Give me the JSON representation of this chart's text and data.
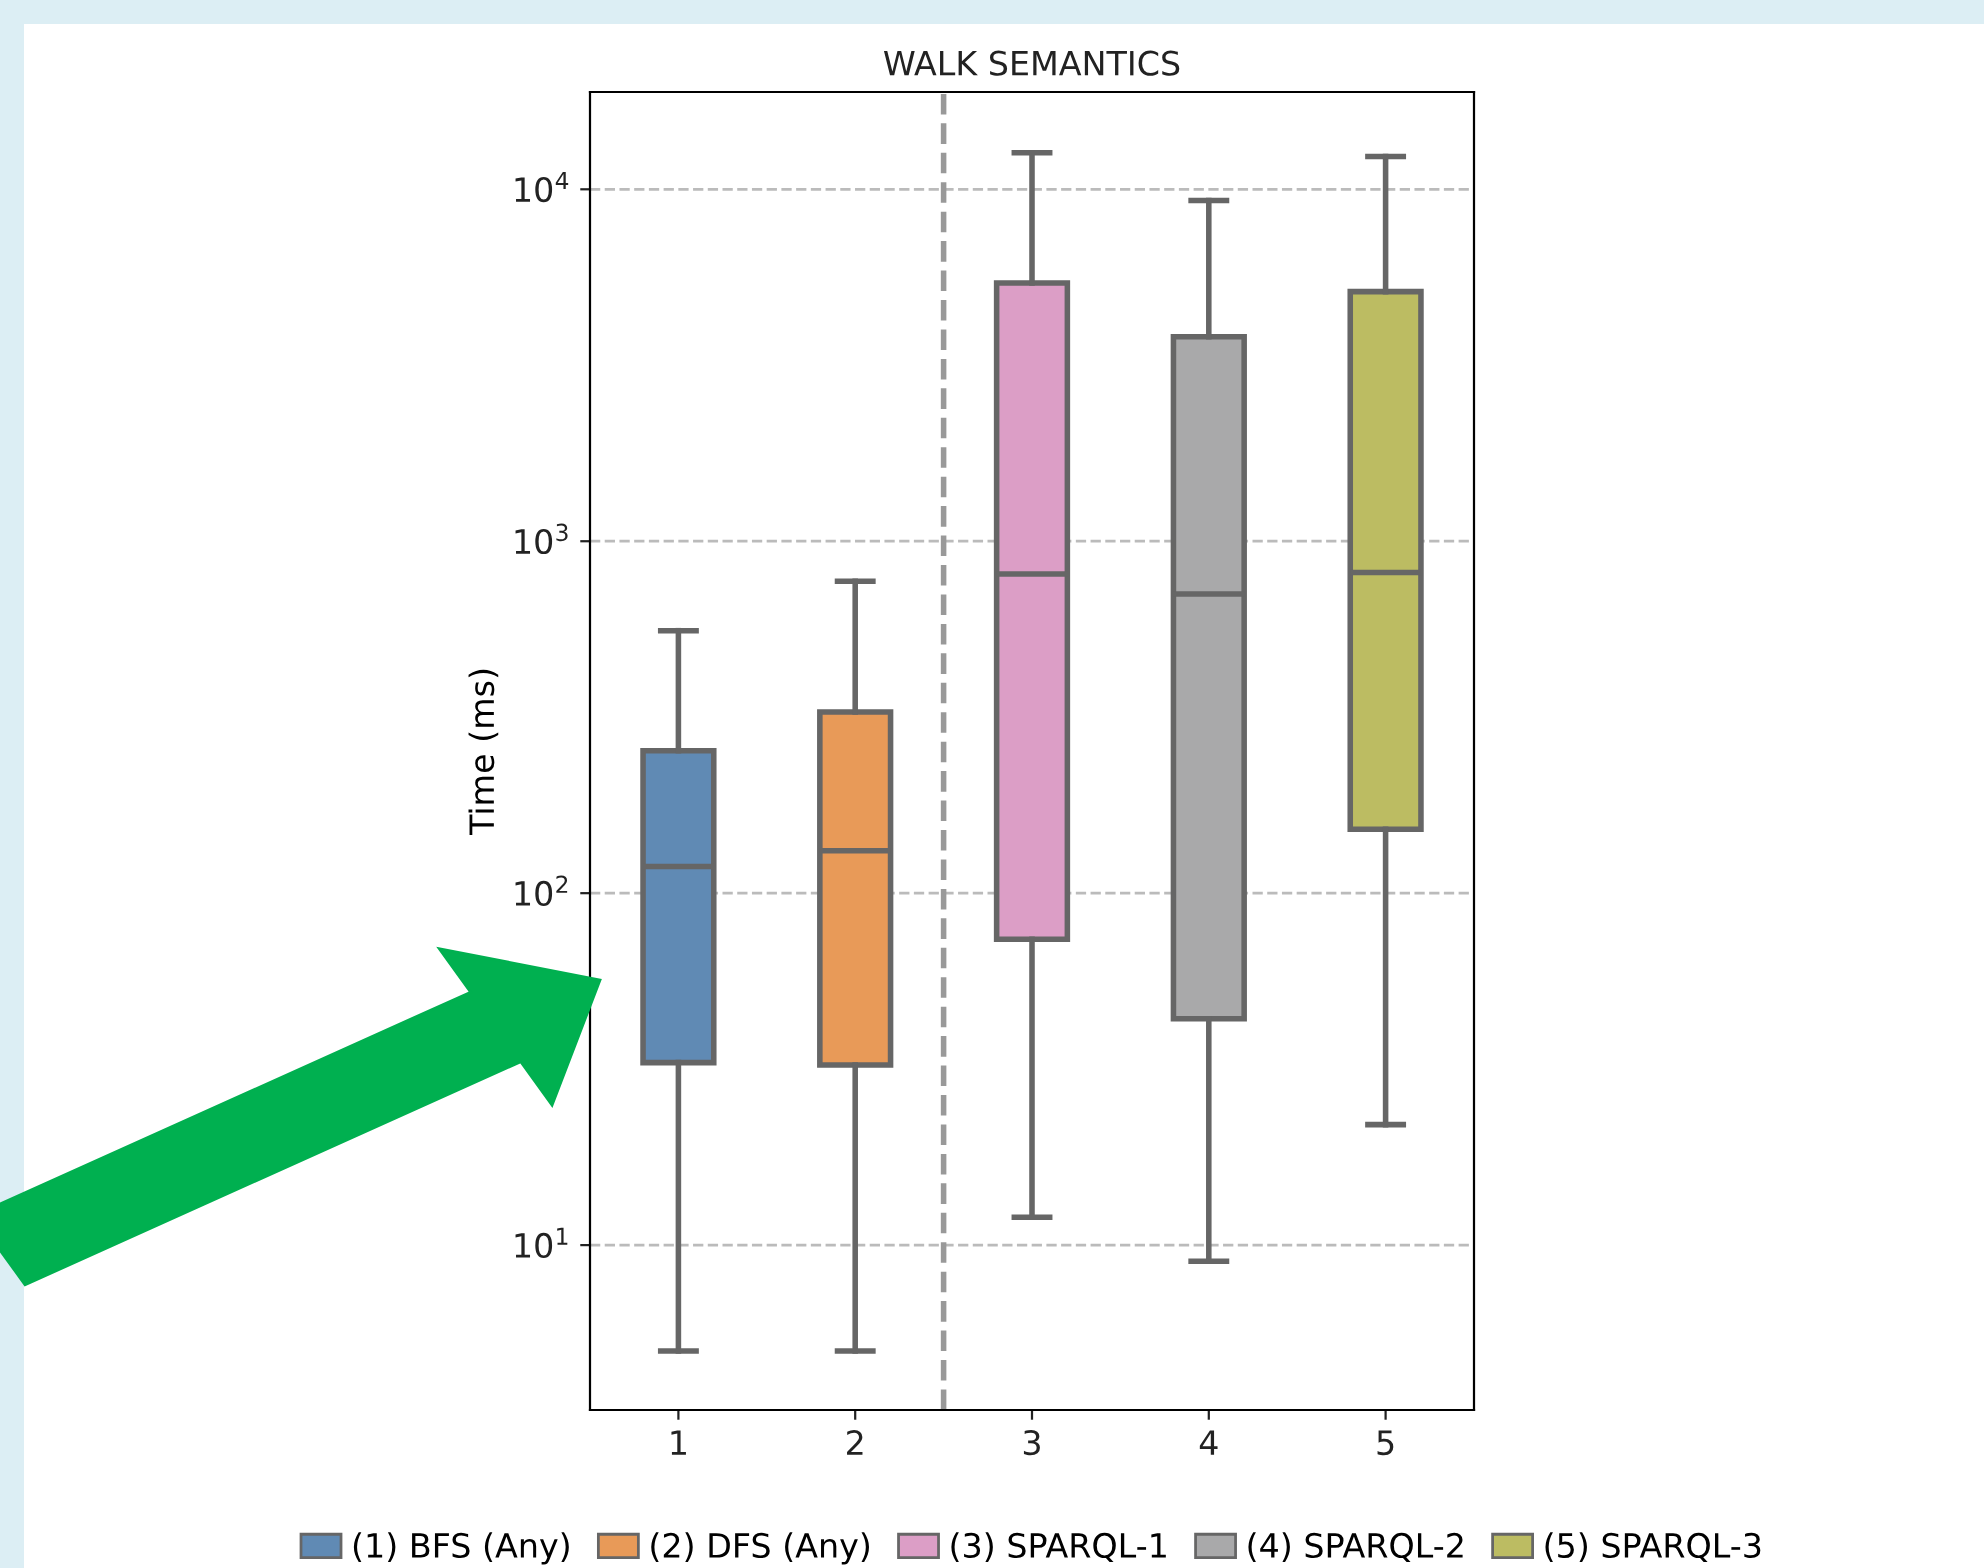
{
  "chart_data": {
    "type": "box",
    "title": "WALK SEMANTICS",
    "ylabel": "Time (ms)",
    "log": "y",
    "grid": "y",
    "legend": "bottom",
    "xlim": [
      0.5,
      5.5
    ],
    "xticks": [
      1,
      2,
      3,
      4,
      5
    ],
    "ylim": [
      3.4,
      18900
    ],
    "yticks": [
      {
        "value": 10,
        "label": "10$^{1}$"
      },
      {
        "value": 100,
        "label": "10$^{2}$"
      },
      {
        "value": 1000,
        "label": "10$^{3}$"
      },
      {
        "value": 10000,
        "label": "10$^{4}$"
      }
    ],
    "ref_lines": [
      {
        "axis": "x",
        "value": 2.5,
        "label": null,
        "color": "#999999",
        "line_style": "dashed"
      }
    ],
    "series": [
      {
        "name": "(1) BFS (Any)",
        "color": "#608ab4",
        "x": [
          1
        ],
        "boxes": [
          {
            "low": 5.0,
            "q1": 33,
            "median": 119,
            "q3": 254,
            "high": 557
          }
        ]
      },
      {
        "name": "(2) DFS (Any)",
        "color": "#e89a58",
        "x": [
          2
        ],
        "boxes": [
          {
            "low": 5.0,
            "q1": 32.5,
            "median": 132,
            "q3": 327,
            "high": 770
          }
        ]
      },
      {
        "name": "(3) SPARQL-1",
        "color": "#dc9ec6",
        "x": [
          3
        ],
        "boxes": [
          {
            "low": 12,
            "q1": 74,
            "median": 807,
            "q3": 5420,
            "high": 12700
          }
        ]
      },
      {
        "name": "(4) SPARQL-2",
        "color": "#a9a9aa",
        "x": [
          4
        ],
        "boxes": [
          {
            "low": 9.0,
            "q1": 44,
            "median": 708,
            "q3": 3810,
            "high": 9290
          }
        ]
      },
      {
        "name": "(5) SPARQL-3",
        "color": "#bcbc62",
        "x": [
          5
        ],
        "boxes": [
          {
            "low": 22,
            "q1": 152,
            "median": 815,
            "q3": 5120,
            "high": 12400
          }
        ]
      }
    ]
  }
}
